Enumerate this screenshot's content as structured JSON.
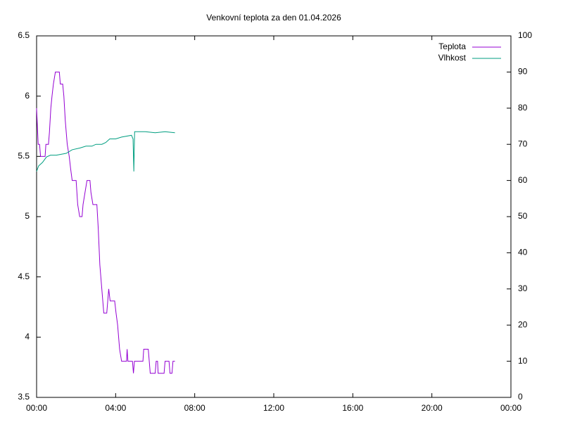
{
  "chart_data": {
    "type": "line",
    "title": "Venkovní teplota za den 01.04.2026",
    "xlim": [
      0,
      24
    ],
    "xticks": [
      {
        "value": 0,
        "label": "00:00"
      },
      {
        "value": 4,
        "label": "04:00"
      },
      {
        "value": 8,
        "label": "08:00"
      },
      {
        "value": 12,
        "label": "12:00"
      },
      {
        "value": 16,
        "label": "16:00"
      },
      {
        "value": 20,
        "label": "20:00"
      },
      {
        "value": 24,
        "label": "00:00"
      }
    ],
    "ylim": [
      3.5,
      6.5
    ],
    "yticks": [
      3.5,
      4,
      4.5,
      5,
      5.5,
      6,
      6.5
    ],
    "y2lim": [
      0,
      100
    ],
    "y2ticks": [
      0,
      10,
      20,
      30,
      40,
      50,
      60,
      70,
      80,
      90,
      100
    ],
    "grid": false,
    "legend": "top-right",
    "series": [
      {
        "name": "Teplota",
        "color": "#9400d3",
        "x": [
          0,
          0.08,
          0.15,
          0.2,
          0.43,
          0.47,
          0.6,
          0.65,
          0.72,
          0.78,
          0.85,
          0.95,
          1.15,
          1.2,
          1.32,
          1.38,
          1.45,
          1.55,
          1.65,
          1.72,
          1.8,
          2.0,
          2.08,
          2.18,
          2.3,
          2.35,
          2.45,
          2.55,
          2.7,
          2.75,
          2.85,
          3.05,
          3.12,
          3.2,
          3.3,
          3.4,
          3.55,
          3.6,
          3.65,
          3.72,
          3.95,
          4.02,
          4.1,
          4.2,
          4.3,
          4.55,
          4.58,
          4.62,
          4.85,
          4.9,
          4.95,
          5.38,
          5.42,
          5.65,
          5.7,
          5.75,
          6.0,
          6.05,
          6.12,
          6.15,
          6.45,
          6.5,
          6.7,
          6.75,
          6.85,
          6.9,
          7.0
        ],
        "values": [
          5.9,
          5.6,
          5.6,
          5.5,
          5.5,
          5.6,
          5.6,
          5.7,
          5.9,
          6.0,
          6.1,
          6.2,
          6.2,
          6.1,
          6.1,
          6.0,
          5.8,
          5.6,
          5.5,
          5.4,
          5.3,
          5.3,
          5.1,
          5.0,
          5.0,
          5.1,
          5.2,
          5.3,
          5.3,
          5.2,
          5.1,
          5.1,
          4.9,
          4.6,
          4.4,
          4.2,
          4.2,
          4.3,
          4.4,
          4.3,
          4.3,
          4.2,
          4.1,
          3.9,
          3.8,
          3.8,
          3.9,
          3.8,
          3.8,
          3.7,
          3.8,
          3.8,
          3.9,
          3.9,
          3.8,
          3.7,
          3.7,
          3.8,
          3.8,
          3.7,
          3.7,
          3.8,
          3.8,
          3.7,
          3.7,
          3.8,
          3.8
        ]
      },
      {
        "name": "Vlhkost",
        "color": "#009e80",
        "axis": "y2",
        "x": [
          0,
          0.1,
          0.3,
          0.5,
          0.7,
          1.0,
          1.5,
          1.8,
          2.2,
          2.5,
          2.8,
          3.0,
          3.3,
          3.5,
          3.7,
          4.0,
          4.3,
          4.8,
          4.88,
          4.92,
          4.96,
          5.5,
          6.0,
          6.5,
          7.0
        ],
        "values": [
          62.5,
          64,
          65,
          66.5,
          67,
          67,
          67.5,
          68.5,
          69,
          69.5,
          69.5,
          70,
          70,
          70.5,
          71.5,
          71.5,
          72,
          72.5,
          71.5,
          62.5,
          73.5,
          73.5,
          73.2,
          73.5,
          73.2
        ]
      }
    ]
  }
}
